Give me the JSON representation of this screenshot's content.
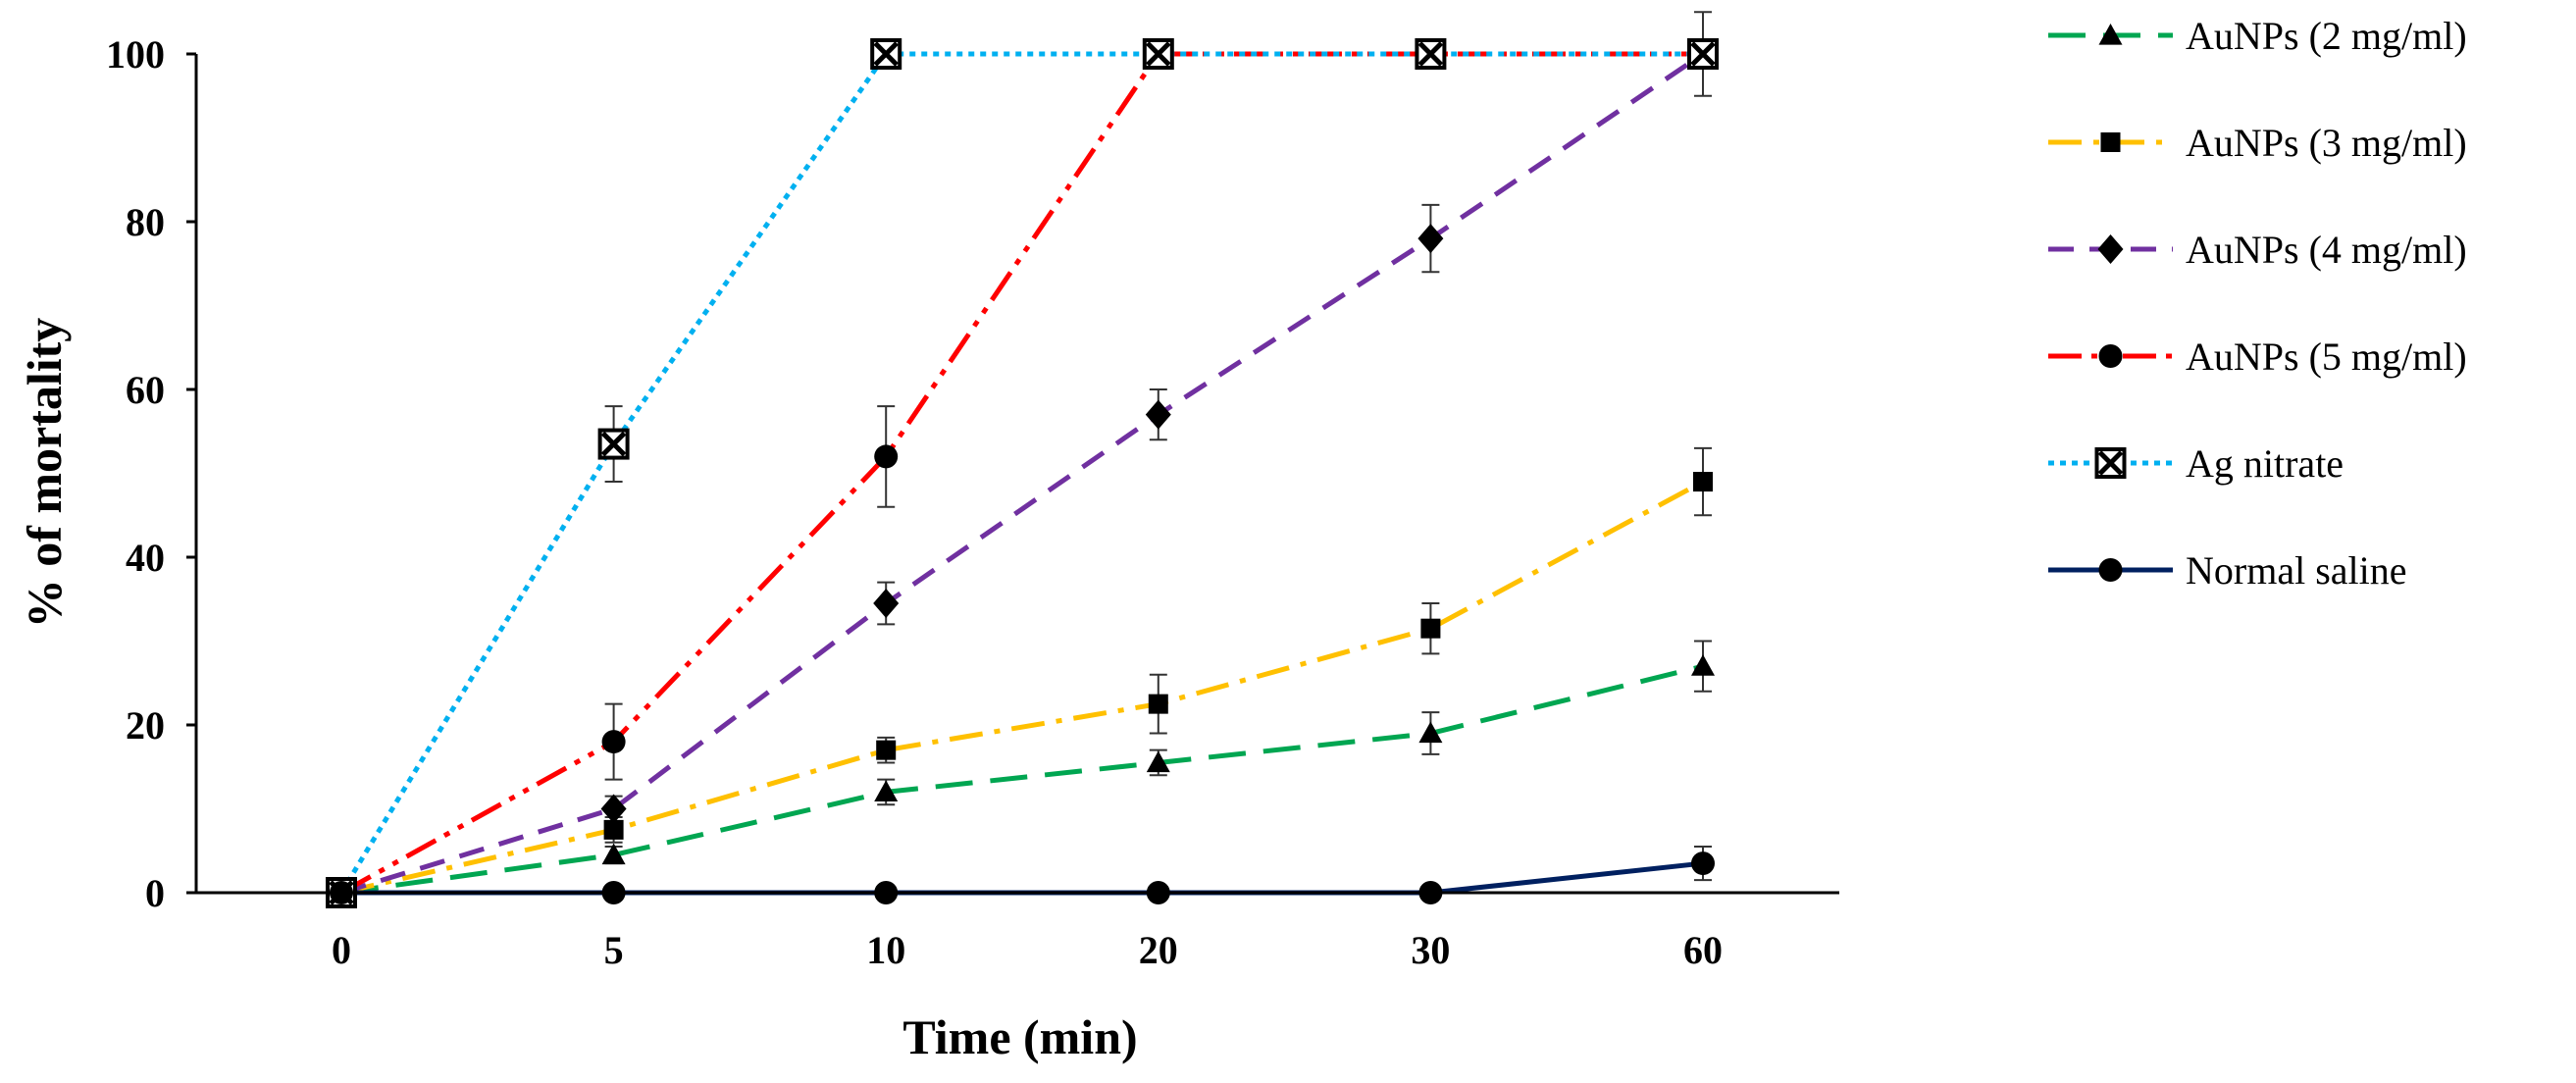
{
  "chart_data": {
    "type": "line",
    "title": "",
    "xlabel": "Time (min)",
    "ylabel": "% of mortality",
    "categories": [
      "0",
      "5",
      "10",
      "20",
      "30",
      "60"
    ],
    "ylim": [
      0,
      100
    ],
    "yticks": [
      0,
      20,
      40,
      60,
      80,
      100
    ],
    "grid": false,
    "legend_position": "right",
    "series": [
      {
        "name": "AuNPs (2 mg/ml)",
        "color": "#00A651",
        "dash": "long-dash",
        "marker": "triangle",
        "values": [
          0,
          4.5,
          12,
          15.5,
          19,
          27
        ],
        "errors": [
          0,
          1,
          1.5,
          1.5,
          2.5,
          3
        ]
      },
      {
        "name": "AuNPs (3 mg/ml)",
        "color": "#FFC000",
        "dash": "dash-dot",
        "marker": "square",
        "values": [
          0,
          7.5,
          17,
          22.5,
          31.5,
          49
        ],
        "errors": [
          0,
          1.5,
          1.5,
          3.5,
          3,
          4
        ]
      },
      {
        "name": "AuNPs (4 mg/ml)",
        "color": "#7030A0",
        "dash": "dash",
        "marker": "diamond",
        "values": [
          0,
          10,
          34.5,
          57,
          78,
          100
        ],
        "errors": [
          0,
          1.5,
          2.5,
          3,
          4,
          5
        ]
      },
      {
        "name": "AuNPs (5 mg/ml)",
        "color": "#FF0000",
        "dash": "dash-dot-dot",
        "marker": "circle",
        "values": [
          0,
          18,
          52,
          100,
          100,
          100
        ],
        "errors": [
          0,
          4.5,
          6,
          0,
          0,
          0
        ]
      },
      {
        "name": "Ag nitrate",
        "color": "#00B0F0",
        "dash": "dot",
        "marker": "boxed-x",
        "values": [
          0,
          53.5,
          100,
          100,
          100,
          100
        ],
        "errors": [
          0,
          4.5,
          0,
          0,
          0,
          0
        ]
      },
      {
        "name": "Normal saline",
        "color": "#002060",
        "dash": "solid",
        "marker": "circle",
        "values": [
          0,
          0,
          0,
          0,
          0,
          3.5
        ],
        "errors": [
          0,
          0,
          0,
          0,
          0,
          2
        ]
      }
    ]
  }
}
